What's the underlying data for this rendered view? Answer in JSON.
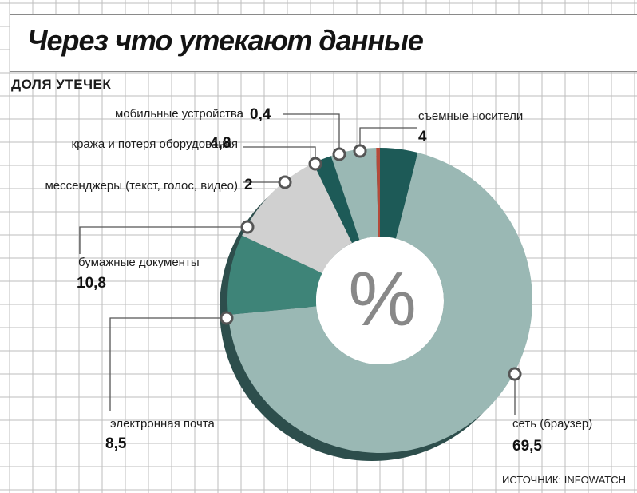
{
  "title": "Через что утекают данные",
  "subtitle": "ДОЛЯ УТЕЧЕК",
  "center_symbol": "%",
  "source": "ИСТОЧНИК: INFOWATCH",
  "colors": {
    "network": "#9ab8b4",
    "removable": "#1d5a57",
    "mobile": "#b44a3a",
    "theft": "#9ab8b4",
    "messengers": "#1d5a57",
    "paper": "#d0d0d0",
    "email": "#3e8478",
    "shadow": "#2d4e4c",
    "grid": "#bdbdbd"
  },
  "chart_data": {
    "type": "pie",
    "style": "donut",
    "title": "Через что утекают данные",
    "subtitle": "ДОЛЯ УТЕЧЕК",
    "unit": "%",
    "slices": [
      {
        "label": "съемные носители",
        "value": 4,
        "value_label": "4",
        "color": "#1d5a57"
      },
      {
        "label": "сеть (браузер)",
        "value": 69.5,
        "value_label": "69,5",
        "color": "#9ab8b4"
      },
      {
        "label": "электронная почта",
        "value": 8.5,
        "value_label": "8,5",
        "color": "#3e8478"
      },
      {
        "label": "бумажные документы",
        "value": 10.8,
        "value_label": "10,8",
        "color": "#d0d0d0"
      },
      {
        "label": "мессенджеры (текст, голос, видео)",
        "value": 2,
        "value_label": "2",
        "color": "#1d5a57"
      },
      {
        "label": "кража и потеря оборудования",
        "value": 4.8,
        "value_label": "4,8",
        "color": "#9ab8b4"
      },
      {
        "label": "мобильные устройства",
        "value": 0.4,
        "value_label": "0,4",
        "color": "#b44a3a"
      }
    ],
    "legend": "callout labels"
  }
}
